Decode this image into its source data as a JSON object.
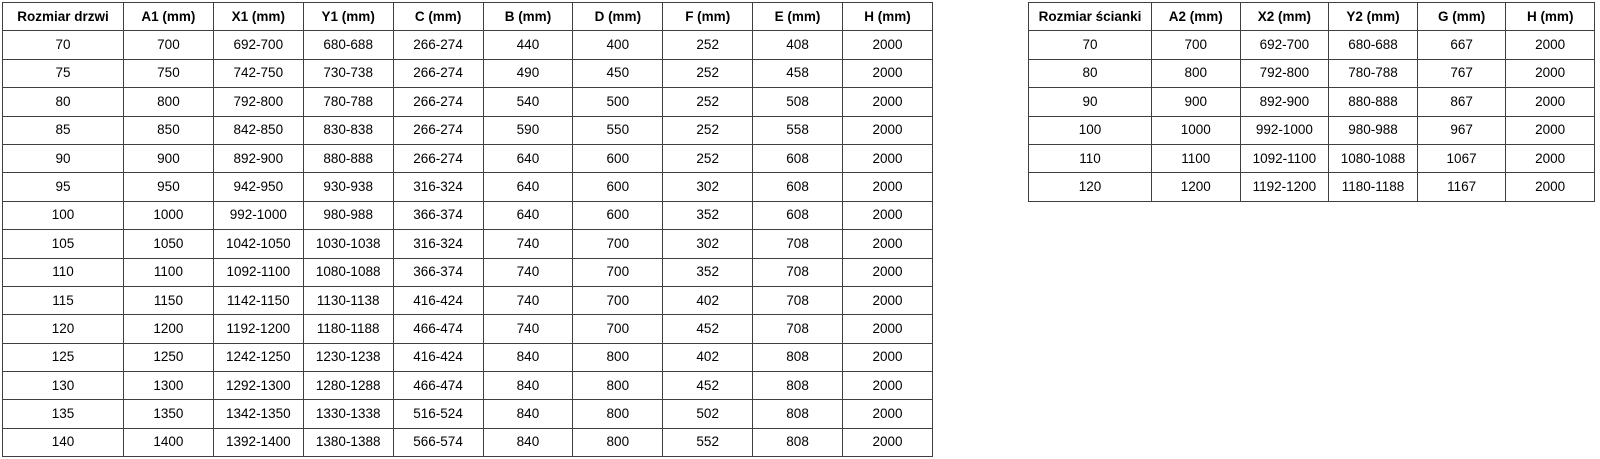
{
  "colors": {
    "background": "#ffffff",
    "border": "#3f3f3f",
    "text": "#000000"
  },
  "door_table": {
    "name": "door-size-table",
    "headers": [
      "Rozmiar drzwi",
      "A1 (mm)",
      "X1 (mm)",
      "Y1 (mm)",
      "C (mm)",
      "B (mm)",
      "D (mm)",
      "F (mm)",
      "E (mm)",
      "H (mm)"
    ],
    "rows": [
      [
        "70",
        "700",
        "692-700",
        "680-688",
        "266-274",
        "440",
        "400",
        "252",
        "408",
        "2000"
      ],
      [
        "75",
        "750",
        "742-750",
        "730-738",
        "266-274",
        "490",
        "450",
        "252",
        "458",
        "2000"
      ],
      [
        "80",
        "800",
        "792-800",
        "780-788",
        "266-274",
        "540",
        "500",
        "252",
        "508",
        "2000"
      ],
      [
        "85",
        "850",
        "842-850",
        "830-838",
        "266-274",
        "590",
        "550",
        "252",
        "558",
        "2000"
      ],
      [
        "90",
        "900",
        "892-900",
        "880-888",
        "266-274",
        "640",
        "600",
        "252",
        "608",
        "2000"
      ],
      [
        "95",
        "950",
        "942-950",
        "930-938",
        "316-324",
        "640",
        "600",
        "302",
        "608",
        "2000"
      ],
      [
        "100",
        "1000",
        "992-1000",
        "980-988",
        "366-374",
        "640",
        "600",
        "352",
        "608",
        "2000"
      ],
      [
        "105",
        "1050",
        "1042-1050",
        "1030-1038",
        "316-324",
        "740",
        "700",
        "302",
        "708",
        "2000"
      ],
      [
        "110",
        "1100",
        "1092-1100",
        "1080-1088",
        "366-374",
        "740",
        "700",
        "352",
        "708",
        "2000"
      ],
      [
        "115",
        "1150",
        "1142-1150",
        "1130-1138",
        "416-424",
        "740",
        "700",
        "402",
        "708",
        "2000"
      ],
      [
        "120",
        "1200",
        "1192-1200",
        "1180-1188",
        "466-474",
        "740",
        "700",
        "452",
        "708",
        "2000"
      ],
      [
        "125",
        "1250",
        "1242-1250",
        "1230-1238",
        "416-424",
        "840",
        "800",
        "402",
        "808",
        "2000"
      ],
      [
        "130",
        "1300",
        "1292-1300",
        "1280-1288",
        "466-474",
        "840",
        "800",
        "452",
        "808",
        "2000"
      ],
      [
        "135",
        "1350",
        "1342-1350",
        "1330-1338",
        "516-524",
        "840",
        "800",
        "502",
        "808",
        "2000"
      ],
      [
        "140",
        "1400",
        "1392-1400",
        "1380-1388",
        "566-574",
        "840",
        "800",
        "552",
        "808",
        "2000"
      ]
    ]
  },
  "wall_table": {
    "name": "wall-size-table",
    "headers": [
      "Rozmiar ścianki",
      "A2 (mm)",
      "X2 (mm)",
      "Y2 (mm)",
      "G (mm)",
      "H (mm)"
    ],
    "rows": [
      [
        "70",
        "700",
        "692-700",
        "680-688",
        "667",
        "2000"
      ],
      [
        "80",
        "800",
        "792-800",
        "780-788",
        "767",
        "2000"
      ],
      [
        "90",
        "900",
        "892-900",
        "880-888",
        "867",
        "2000"
      ],
      [
        "100",
        "1000",
        "992-1000",
        "980-988",
        "967",
        "2000"
      ],
      [
        "110",
        "1100",
        "1092-1100",
        "1080-1088",
        "1067",
        "2000"
      ],
      [
        "120",
        "1200",
        "1192-1200",
        "1180-1188",
        "1167",
        "2000"
      ]
    ]
  }
}
